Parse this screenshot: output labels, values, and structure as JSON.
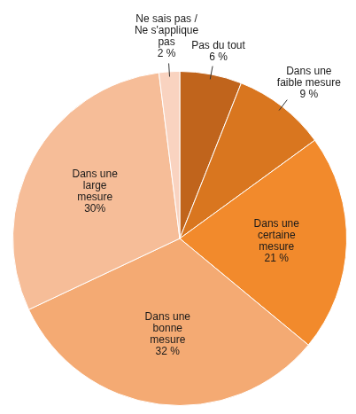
{
  "chart_data": {
    "type": "pie",
    "categories": [
      "Pas du tout",
      "Dans une faible mesure",
      "Dans une certaine mesure",
      "Dans une bonne mesure",
      "Dans une large mesure",
      "Ne sais pas / Ne s'applique pas"
    ],
    "values": [
      6,
      9,
      21,
      32,
      30,
      2
    ],
    "value_labels": [
      "6 %",
      "9 %",
      "21 %",
      "32 %",
      "30%",
      "2 %"
    ],
    "colors": [
      "#c0641c",
      "#d9761f",
      "#f28a2c",
      "#f4aa73",
      "#f6bd98",
      "#f9d3c0"
    ],
    "data_labels": true
  }
}
